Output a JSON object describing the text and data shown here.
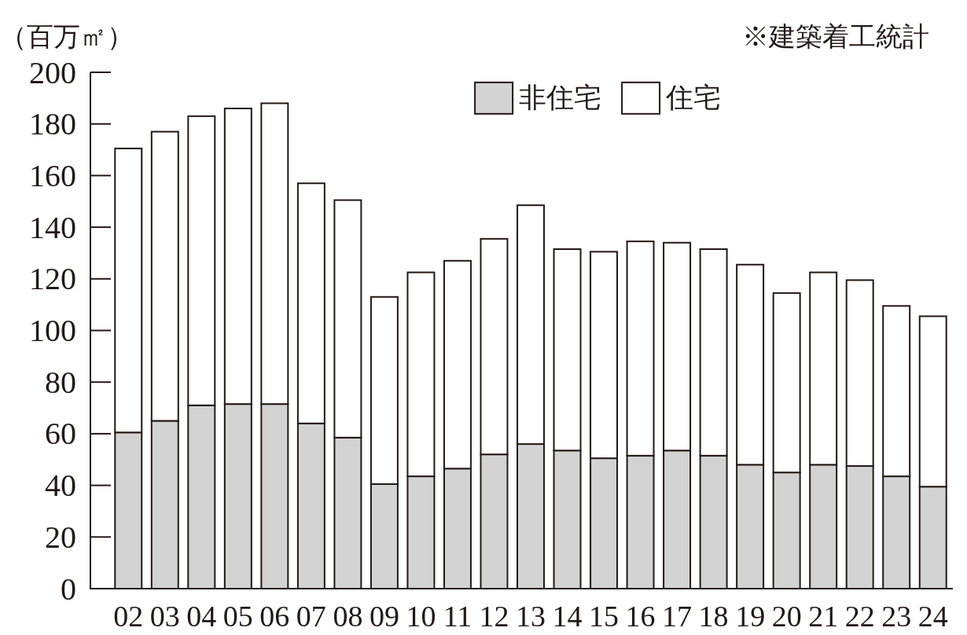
{
  "chart_data": {
    "type": "bar",
    "stacked": true,
    "ylabel": "（百万㎡）",
    "annotations": [
      "※建築着工統計"
    ],
    "categories": [
      "02",
      "03",
      "04",
      "05",
      "06",
      "07",
      "08",
      "09",
      "10",
      "11",
      "12",
      "13",
      "14",
      "15",
      "16",
      "17",
      "18",
      "19",
      "20",
      "21",
      "22",
      "23",
      "24"
    ],
    "series": [
      {
        "name": "非住宅",
        "color": "#d3d3d3",
        "values": [
          60.5,
          65,
          71,
          71.5,
          71.5,
          64,
          58.5,
          40.5,
          43.5,
          46.5,
          52,
          56,
          53.5,
          50.5,
          51.5,
          53.5,
          51.5,
          48,
          45,
          48,
          47.5,
          43.5,
          39.5
        ]
      },
      {
        "name": "住宅",
        "color": "#ffffff",
        "values": [
          110,
          112,
          112,
          114.5,
          116.5,
          93,
          92,
          72.5,
          79,
          80.5,
          83.5,
          92.5,
          78,
          80,
          83,
          80.5,
          80,
          77.5,
          69.5,
          74.5,
          72,
          66,
          66
        ]
      }
    ],
    "ylim": [
      0,
      200
    ],
    "yticks": [
      0,
      20,
      40,
      60,
      80,
      100,
      120,
      140,
      160,
      180,
      200
    ],
    "legend": "top"
  }
}
